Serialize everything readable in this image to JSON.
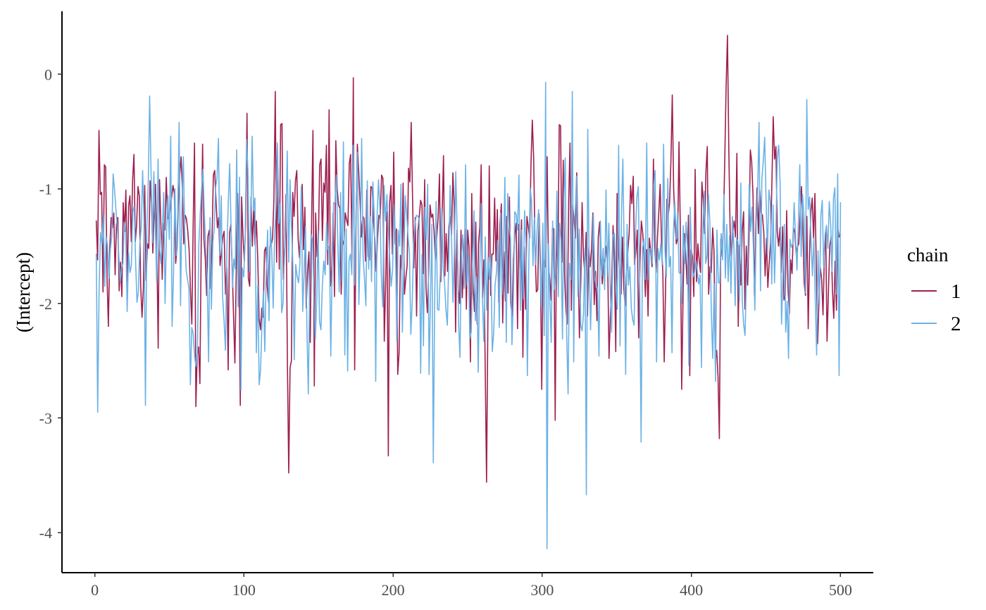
{
  "chart_data": {
    "type": "line",
    "title": "",
    "xlabel": "",
    "ylabel": "(Intercept)",
    "xlim": [
      -22,
      522
    ],
    "ylim": [
      -4.35,
      0.55
    ],
    "x_ticks": [
      0,
      100,
      200,
      300,
      400,
      500
    ],
    "x_tick_labels": [
      "0",
      "100",
      "200",
      "300",
      "400",
      "500"
    ],
    "y_ticks": [
      0,
      -1,
      -2,
      -3,
      -4
    ],
    "y_tick_labels": [
      "0",
      "-1",
      "-2",
      "-3",
      "-4"
    ],
    "grid": false,
    "legend": {
      "title": "chain",
      "position": "right"
    },
    "x_range": [
      1,
      500
    ],
    "series": [
      {
        "name": "1",
        "color": "#9e1f4f",
        "values": [
          -1.28,
          -1.62,
          -0.49,
          -1.05,
          -1.03,
          -1.9,
          -0.79,
          -0.81,
          -1.78,
          -2.2,
          -1.53,
          -1.25,
          -1.34,
          -1.21,
          -1.75,
          -1.31,
          -1.25,
          -1.89,
          -1.64,
          -1.94,
          -1.12,
          -1.37,
          -1.01,
          -1.87,
          -1.15,
          -1.06,
          -1.46,
          -0.92,
          -0.7,
          -1.46,
          -1.31,
          -0.98,
          -1.06,
          -1.85,
          -2.12,
          -1.86,
          -0.97,
          -1.8,
          -1.48,
          -1.52,
          -0.93,
          -1.12,
          -1.56,
          -1.21,
          -0.96,
          -1.55,
          -2.39,
          -0.92,
          -1.32,
          -1.79,
          -1.3,
          -1.36,
          -0.9,
          -1.26,
          -1.25,
          -1.17,
          -1.07,
          -0.97,
          -1.04,
          -1.65,
          -1.51,
          -1.12,
          -0.88,
          -0.72,
          -1.0,
          -1.48,
          -1.23,
          -1.26,
          -1.37,
          -1.54,
          -1.89,
          -2.18,
          -1.31,
          -0.6,
          -2.9,
          -2.45,
          -2.38,
          -2.7,
          -1.45,
          -0.61,
          -1.44,
          -1.61,
          -1.93,
          -1.41,
          -1.36,
          -1.87,
          -1.46,
          -0.88,
          -0.84,
          -1.11,
          -1.34,
          -1.25,
          -1.67,
          -1.55,
          -1.42,
          -1.37,
          -1.92,
          -1.69,
          -2.58,
          -1.39,
          -1.31,
          -1.69,
          -2.11,
          -2.52,
          -1.73,
          -1.04,
          -1.56,
          -2.89,
          -1.07,
          -1.41,
          -1.63,
          -1.31,
          -0.34,
          -1.78,
          -1.85,
          -1.07,
          -1.5,
          -1.16,
          -1.49,
          -1.28,
          -1.62,
          -2.13,
          -2.23,
          -2.04,
          -2.12,
          -1.54,
          -1.51,
          -1.85,
          -1.99,
          -1.5,
          -1.49,
          -1.43,
          -1.09,
          -0.15,
          -1.64,
          -0.83,
          -1.7,
          -0.44,
          -0.43,
          -1.79,
          -1.55,
          -1.05,
          -2.5,
          -3.48,
          -2.56,
          -2.5,
          -1.03,
          -1.24,
          -0.93,
          -0.84,
          -1.44,
          -1.6,
          -1.3,
          -0.96,
          -1.53,
          -1.16,
          -2.04,
          -1.72,
          -1.55,
          -2.34,
          -1.28,
          -0.49,
          -2.72,
          -1.21,
          -1.59,
          -1.48,
          -0.79,
          -0.74,
          -1.45,
          -0.95,
          -1.03,
          -0.62,
          -1.66,
          -0.31,
          -1.85,
          -1.68,
          -1.21,
          -1.94,
          -0.58,
          -1.0,
          -1.14,
          -1.17,
          -1.92,
          -1.45,
          -1.49,
          -1.21,
          -1.27,
          -1.32,
          -0.78,
          -0.7,
          -1.64,
          -0.03,
          -2.58,
          -1.29,
          -0.61,
          -0.85,
          -1.11,
          -1.42,
          -1.24,
          -1.26,
          -1.63,
          -1.01,
          -1.59,
          -1.62,
          -0.98,
          -0.99,
          -1.28,
          -1.45,
          -1.72,
          -1.43,
          -1.23,
          -1.26,
          -0.88,
          -0.91,
          -2.33,
          -1.84,
          -1.2,
          -3.33,
          -1.12,
          -0.97,
          -1.57,
          -0.68,
          -1.48,
          -1.35,
          -2.62,
          -2.43,
          -1.58,
          -1.71,
          -0.95,
          -1.92,
          -1.78,
          -1.67,
          -0.82,
          -0.94,
          -0.42,
          -1.07,
          -1.69,
          -1.25,
          -2.11,
          -1.37,
          -1.24,
          -1.1,
          -1.14,
          -1.74,
          -0.92,
          -1.86,
          -2.08,
          -1.72,
          -1.14,
          -1.25,
          -1.22,
          -1.37,
          -1.62,
          -1.42,
          -1.26,
          -0.87,
          -1.81,
          -1.22,
          -0.71,
          -1.76,
          -1.39,
          -1.72,
          -1.33,
          -1.24,
          -1.4,
          -0.86,
          -1.16,
          -2.25,
          -1.36,
          -1.88,
          -2.0,
          -1.36,
          -1.95,
          -1.62,
          -1.35,
          -2.05,
          -1.36,
          -1.51,
          -2.51,
          -1.04,
          -1.86,
          -2.07,
          -1.29,
          -2.18,
          -1.48,
          -1.33,
          -0.79,
          -1.95,
          -1.62,
          -2.56,
          -3.56,
          -2.12,
          -0.8,
          -1.93,
          -1.57,
          -1.57,
          -1.08,
          -1.63,
          -1.18,
          -1.99,
          -1.31,
          -1.13,
          -2.17,
          -1.55,
          -1.98,
          -1.24,
          -1.91,
          -1.07,
          -2.0,
          -2.11,
          -1.61,
          -1.4,
          -1.3,
          -2.22,
          -1.31,
          -1.79,
          -1.27,
          -2.47,
          -1.51,
          -2.05,
          -1.24,
          -1.33,
          -1.43,
          -0.79,
          -0.4,
          -0.73,
          -1.49,
          -1.9,
          -1.88,
          -1.22,
          -1.65,
          -2.75,
          -1.61,
          -1.68,
          -1.68,
          -0.72,
          -1.66,
          -1.79,
          -1.97,
          -1.34,
          -1.35,
          -3.02,
          -1.35,
          -1.68,
          -0.44,
          -0.45,
          -1.64,
          -0.75,
          -1.77,
          -2.07,
          -2.18,
          -1.12,
          -0.6,
          -2.06,
          -1.14,
          -1.27,
          -1.43,
          -0.86,
          -1.58,
          -2.3,
          -1.82,
          -1.12,
          -1.59,
          -1.73,
          -1.38,
          -2.11,
          -1.51,
          -1.68,
          -1.53,
          -1.21,
          -2.01,
          -1.72,
          -2.15,
          -1.42,
          -1.29,
          -1.62,
          -1.83,
          -1.61,
          -1.64,
          -1.5,
          -1.64,
          -2.48,
          -2.11,
          -1.82,
          -1.32,
          -1.66,
          -2.42,
          -1.04,
          -1.55,
          -1.71,
          -1.92,
          -1.42,
          -1.87,
          -2.02,
          -1.74,
          -1.54,
          -1.38,
          -0.97,
          -1.13,
          -0.89,
          -1.66,
          -1.55,
          -1.36,
          -2.3,
          -1.64,
          -1.28,
          -1.38,
          -1.58,
          -1.94,
          -1.53,
          -2.11,
          -1.43,
          -1.55,
          -1.68,
          -0.74,
          -1.5,
          -1.73,
          -1.42,
          -1.2,
          -0.96,
          -1.47,
          -1.74,
          -2.51,
          -1.88,
          -1.09,
          -1.23,
          -1.12,
          -0.76,
          -0.18,
          -0.99,
          -1.32,
          -1.48,
          -1.43,
          -0.59,
          -1.37,
          -2.75,
          -1.94,
          -1.39,
          -1.58,
          -1.83,
          -1.23,
          -2.63,
          -1.53,
          -1.59,
          -1.94,
          -0.83,
          -1.81,
          -1.48,
          -1.62,
          -1.73,
          -0.94,
          -1.1,
          -1.39,
          -0.85,
          -0.63,
          -1.92,
          -1.68,
          -1.73,
          -1.34,
          -1.54,
          -2.51,
          -2.41,
          -2.64,
          -3.18,
          -1.44,
          -1.59,
          -1.31,
          -0.75,
          -0.11,
          0.34,
          -0.65,
          -1.37,
          -1.59,
          -1.38,
          -1.28,
          -1.42,
          -0.69,
          -2.2,
          -1.49,
          -1.84,
          -1.37,
          -1.2,
          -2.05,
          -1.5,
          -1.84,
          -1.43,
          -0.66,
          -0.76,
          -1.06,
          -1.93,
          -1.35,
          -0.99,
          -1.39,
          -1.01,
          -1.21,
          -1.23,
          -1.38,
          -1.76,
          -1.43,
          -1.86,
          -1.65,
          -1.48,
          -0.96,
          -0.37,
          -0.74,
          -0.63,
          -1.37,
          -1.5,
          -1.34,
          -1.73,
          -1.33,
          -1.97,
          -1.93,
          -1.19,
          -1.87,
          -2.09,
          -1.62,
          -1.74,
          -1.34,
          -1.38,
          -1.56,
          -1.51,
          -1.48,
          -1.23,
          -0.98,
          -1.32,
          -1.82,
          -1.93,
          -1.24,
          -2.22,
          -1.57,
          -1.2,
          -1.08,
          -1.43,
          -1.04,
          -1.67,
          -2.35,
          -1.97,
          -1.69,
          -1.79,
          -2.1,
          -1.59,
          -1.36,
          -2.33,
          -1.91,
          -1.5,
          -1.42,
          -1.88,
          -2.13,
          -1.63,
          -2.06,
          -1.34,
          -1.42,
          -1.4
        ]
      },
      {
        "name": "2",
        "color": "#6cb2e5",
        "values": [
          -1.57,
          -2.95,
          -1.88,
          -1.38,
          -1.48,
          -1.23,
          -1.85,
          -1.42,
          -1.49,
          -1.78,
          -1.53,
          -1.42,
          -0.87,
          -1.01,
          -1.18,
          -1.33,
          -1.57,
          -1.82,
          -1.69,
          -1.65,
          -1.29,
          -1.38,
          -2.07,
          -1.56,
          -1.73,
          -1.67,
          -1.2,
          -1.15,
          -1.63,
          -1.99,
          -1.9,
          -1.48,
          -1.34,
          -0.84,
          -1.28,
          -2.89,
          -1.35,
          -0.97,
          -0.19,
          -0.85,
          -1.47,
          -0.85,
          -1.29,
          -1.81,
          -0.74,
          -1.52,
          -1.65,
          -1.4,
          -1.03,
          -2.0,
          -1.39,
          -1.06,
          -1.44,
          -0.54,
          -2.2,
          -1.74,
          -1.0,
          -1.58,
          -1.21,
          -0.42,
          -2.02,
          -1.18,
          -0.72,
          -1.38,
          -1.71,
          -1.79,
          -1.87,
          -2.71,
          -2.21,
          -2.26,
          -2.46,
          -2.55,
          -2.45,
          -1.49,
          -1.22,
          -1.0,
          -0.83,
          -1.24,
          -1.51,
          -1.82,
          -2.51,
          -1.25,
          -2.05,
          -1.47,
          -1.35,
          -0.99,
          -0.9,
          -0.56,
          -1.58,
          -1.06,
          -1.95,
          -2.15,
          -2.41,
          -1.53,
          -1.12,
          -0.78,
          -1.34,
          -1.86,
          -1.61,
          -1.7,
          -0.66,
          -2.03,
          -0.9,
          -2.76,
          -1.69,
          -1.77,
          -1.44,
          -0.57,
          -0.84,
          -1.72,
          -1.36,
          -0.54,
          -1.19,
          -1.08,
          -2.43,
          -1.84,
          -2.71,
          -2.58,
          -2.18,
          -1.89,
          -2.42,
          -1.74,
          -1.36,
          -2.15,
          -1.33,
          -1.56,
          -2.04,
          -1.43,
          -1.13,
          -0.6,
          -1.3,
          -1.13,
          -2.08,
          -2.0,
          -1.54,
          -1.34,
          -0.67,
          -1.64,
          -0.92,
          -1.33,
          -1.66,
          -2.49,
          -1.66,
          -1.76,
          -1.82,
          -1.66,
          -0.98,
          -2.07,
          -1.73,
          -1.33,
          -2.21,
          -2.79,
          -1.84,
          -1.4,
          -1.44,
          -1.92,
          -2.31,
          -1.98,
          -1.37,
          -2.16,
          -2.23,
          -1.84,
          -1.63,
          -1.75,
          -1.29,
          -1.53,
          -1.5,
          -2.46,
          -1.67,
          -1.12,
          -1.12,
          -0.88,
          -1.47,
          -1.9,
          -1.03,
          -1.81,
          -0.59,
          -2.45,
          -1.35,
          -2.59,
          -1.62,
          -1.57,
          -1.75,
          -0.62,
          -1.84,
          -1.21,
          -0.68,
          -2.01,
          -1.52,
          -0.56,
          -1.59,
          -1.78,
          -2.02,
          -0.93,
          -1.7,
          -1.24,
          -1.81,
          -0.94,
          -1.25,
          -2.68,
          -1.23,
          -0.92,
          -1.18,
          -1.76,
          -2.03,
          -0.97,
          -1.28,
          -1.05,
          -1.37,
          -1.62,
          -1.85,
          -1.71,
          -1.14,
          -1.42,
          -2.33,
          -1.36,
          -1.5,
          -0.96,
          -2.25,
          -1.66,
          -1.06,
          -1.21,
          -1.41,
          -1.56,
          -2.27,
          -1.99,
          -1.48,
          -1.3,
          -1.23,
          -1.24,
          -1.26,
          -2.61,
          -1.57,
          -2.37,
          -1.16,
          -1.44,
          -0.96,
          -2.62,
          -1.95,
          -1.31,
          -3.39,
          -1.98,
          -1.11,
          -2.05,
          -2.06,
          -1.74,
          -1.17,
          -1.7,
          -1.81,
          -2.05,
          -2.19,
          -1.64,
          -0.97,
          -1.43,
          -1.99,
          -1.56,
          -0.85,
          -1.36,
          -2.16,
          -2.47,
          -1.58,
          -1.4,
          -1.87,
          -0.79,
          -1.84,
          -1.57,
          -2.31,
          -2.25,
          -1.72,
          -1.19,
          -2.15,
          -1.77,
          -2.6,
          -1.75,
          -1.13,
          -1.96,
          -2.33,
          -1.42,
          -2.06,
          -1.6,
          -1.79,
          -1.57,
          -2.42,
          -2.26,
          -1.84,
          -1.73,
          -1.45,
          -2.21,
          -1.21,
          -1.92,
          -1.57,
          -0.9,
          -2.34,
          -1.04,
          -1.33,
          -1.43,
          -2.36,
          -1.97,
          -1.2,
          -1.22,
          -1.36,
          -0.88,
          -2.06,
          -1.36,
          -1.96,
          -1.19,
          -1.47,
          -2.63,
          -1.67,
          -0.99,
          -1.11,
          -1.67,
          -1.25,
          -1.66,
          -1.34,
          -1.18,
          -1.64,
          -2.03,
          -1.3,
          -2.28,
          -0.07,
          -4.14,
          -1.48,
          -1.98,
          -2.34,
          -1.28,
          -1.88,
          -1.75,
          -1.02,
          -1.94,
          -1.3,
          -1.45,
          -2.31,
          -1.08,
          -0.73,
          -2.28,
          -2.79,
          -1.65,
          -1.79,
          -0.15,
          -2.51,
          -1.23,
          -0.89,
          -1.94,
          -1.35,
          -2.19,
          -2.24,
          -2.09,
          -1.52,
          -3.67,
          -0.48,
          -1.62,
          -2.23,
          -1.78,
          -1.22,
          -1.74,
          -1.86,
          -1.86,
          -2.46,
          -1.28,
          -1.76,
          -1.52,
          -1.88,
          -1.01,
          -1.76,
          -1.3,
          -1.86,
          -2.25,
          -1.4,
          -1.39,
          -1.79,
          -2.05,
          -0.62,
          -2.37,
          -1.24,
          -0.74,
          -1.6,
          -2.62,
          -1.31,
          -1.84,
          -1.68,
          -2.04,
          -2.14,
          -2.19,
          -1.38,
          -1.07,
          -0.98,
          -1.82,
          -3.21,
          -1.52,
          -1.44,
          -1.79,
          -0.6,
          -1.79,
          -1.52,
          -1.53,
          -1.65,
          -0.97,
          -0.84,
          -2.51,
          -1.52,
          -1.62,
          -1.48,
          -1.66,
          -0.61,
          -1.53,
          -1.77,
          -0.91,
          -1.68,
          -1.59,
          -2.43,
          -1.38,
          -1.11,
          -1.44,
          -1.21,
          -1.73,
          -1.74,
          -2.0,
          -1.32,
          -1.65,
          -1.29,
          -1.51,
          -2.54,
          -1.16,
          -1.59,
          -1.77,
          -1.73,
          -1.63,
          -1.71,
          -1.83,
          -1.75,
          -2.56,
          -1.34,
          -1.02,
          -1.65,
          -1.58,
          -1.05,
          -1.3,
          -2.08,
          -2.48,
          -1.83,
          -2.68,
          -1.36,
          -1.82,
          -1.82,
          -1.39,
          -1.62,
          -1.05,
          -1.78,
          -1.31,
          -1.81,
          -1.41,
          -1.91,
          -1.24,
          -1.47,
          -2.02,
          -1.43,
          -1.46,
          -1.98,
          -0.95,
          -1.96,
          -2.18,
          -2.28,
          -1.77,
          -1.62,
          -0.96,
          -1.37,
          -1.16,
          -1.53,
          -2.06,
          -1.29,
          -1.02,
          -0.42,
          -1.89,
          -0.91,
          -0.76,
          -0.55,
          -1.1,
          -1.57,
          -1.01,
          -1.11,
          -1.83,
          -1.14,
          -1.82,
          -1.38,
          -0.72,
          -0.62,
          -0.95,
          -2.18,
          -1.75,
          -1.31,
          -2.25,
          -1.98,
          -2.48,
          -1.44,
          -1.51,
          -1.48,
          -1.12,
          -1.43,
          -1.71,
          -1.3,
          -0.79,
          -1.59,
          -1.05,
          -1.24,
          -1.91,
          -0.22,
          -1.18,
          -1.07,
          -1.43,
          -1.76,
          -1.43,
          -1.94,
          -2.45,
          -1.54,
          -2.01,
          -1.24,
          -1.1,
          -1.69,
          -1.4,
          -1.32,
          -1.52,
          -1.11,
          -1.31,
          -1.72,
          -1.08,
          -0.99,
          -1.92,
          -0.87,
          -2.63,
          -1.12
        ]
      }
    ]
  }
}
